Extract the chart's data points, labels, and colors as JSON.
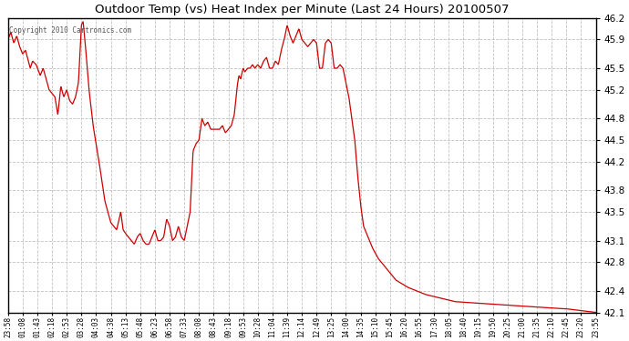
{
  "title": "Outdoor Temp (vs) Heat Index per Minute (Last 24 Hours) 20100507",
  "copyright_text": "Copyright 2010 Cartronics.com",
  "line_color": "#cc0000",
  "background_color": "#ffffff",
  "grid_color": "#c0c0c0",
  "ylim": [
    42.1,
    46.2
  ],
  "yticks": [
    42.1,
    42.4,
    42.8,
    43.1,
    43.5,
    43.8,
    44.2,
    44.5,
    44.8,
    45.2,
    45.5,
    45.9,
    46.2
  ],
  "xtick_labels": [
    "23:58",
    "01:08",
    "01:43",
    "02:18",
    "02:53",
    "03:28",
    "04:03",
    "04:38",
    "05:13",
    "05:48",
    "06:23",
    "06:58",
    "07:33",
    "08:08",
    "08:43",
    "09:18",
    "09:53",
    "10:28",
    "11:04",
    "11:39",
    "12:14",
    "12:49",
    "13:25",
    "14:00",
    "14:35",
    "15:10",
    "15:45",
    "16:20",
    "16:55",
    "17:30",
    "18:05",
    "18:40",
    "19:15",
    "19:50",
    "20:25",
    "21:00",
    "21:35",
    "22:10",
    "22:45",
    "23:20",
    "23:55"
  ],
  "control_points": [
    [
      0.0,
      45.9
    ],
    [
      0.005,
      46.0
    ],
    [
      0.01,
      45.85
    ],
    [
      0.015,
      45.95
    ],
    [
      0.02,
      45.8
    ],
    [
      0.025,
      45.7
    ],
    [
      0.03,
      45.75
    ],
    [
      0.038,
      45.5
    ],
    [
      0.042,
      45.6
    ],
    [
      0.048,
      45.55
    ],
    [
      0.055,
      45.4
    ],
    [
      0.06,
      45.5
    ],
    [
      0.065,
      45.35
    ],
    [
      0.07,
      45.2
    ],
    [
      0.075,
      45.15
    ],
    [
      0.08,
      45.1
    ],
    [
      0.085,
      44.85
    ],
    [
      0.09,
      45.25
    ],
    [
      0.095,
      45.1
    ],
    [
      0.1,
      45.2
    ],
    [
      0.105,
      45.05
    ],
    [
      0.11,
      45.0
    ],
    [
      0.115,
      45.1
    ],
    [
      0.12,
      45.3
    ],
    [
      0.125,
      46.1
    ],
    [
      0.128,
      46.15
    ],
    [
      0.132,
      45.8
    ],
    [
      0.138,
      45.2
    ],
    [
      0.145,
      44.7
    ],
    [
      0.155,
      44.2
    ],
    [
      0.165,
      43.65
    ],
    [
      0.175,
      43.35
    ],
    [
      0.185,
      43.25
    ],
    [
      0.192,
      43.5
    ],
    [
      0.196,
      43.25
    ],
    [
      0.2,
      43.2
    ],
    [
      0.205,
      43.15
    ],
    [
      0.21,
      43.1
    ],
    [
      0.215,
      43.05
    ],
    [
      0.22,
      43.15
    ],
    [
      0.225,
      43.2
    ],
    [
      0.23,
      43.1
    ],
    [
      0.235,
      43.05
    ],
    [
      0.24,
      43.05
    ],
    [
      0.245,
      43.15
    ],
    [
      0.25,
      43.25
    ],
    [
      0.255,
      43.1
    ],
    [
      0.26,
      43.1
    ],
    [
      0.265,
      43.15
    ],
    [
      0.27,
      43.4
    ],
    [
      0.275,
      43.3
    ],
    [
      0.28,
      43.1
    ],
    [
      0.285,
      43.15
    ],
    [
      0.29,
      43.3
    ],
    [
      0.295,
      43.15
    ],
    [
      0.3,
      43.1
    ],
    [
      0.31,
      43.5
    ],
    [
      0.315,
      44.35
    ],
    [
      0.32,
      44.45
    ],
    [
      0.325,
      44.5
    ],
    [
      0.33,
      44.8
    ],
    [
      0.335,
      44.7
    ],
    [
      0.34,
      44.75
    ],
    [
      0.345,
      44.65
    ],
    [
      0.35,
      44.65
    ],
    [
      0.355,
      44.65
    ],
    [
      0.36,
      44.65
    ],
    [
      0.365,
      44.7
    ],
    [
      0.37,
      44.6
    ],
    [
      0.375,
      44.65
    ],
    [
      0.38,
      44.7
    ],
    [
      0.385,
      44.85
    ],
    [
      0.39,
      45.25
    ],
    [
      0.393,
      45.4
    ],
    [
      0.396,
      45.35
    ],
    [
      0.4,
      45.5
    ],
    [
      0.403,
      45.45
    ],
    [
      0.408,
      45.5
    ],
    [
      0.412,
      45.5
    ],
    [
      0.416,
      45.55
    ],
    [
      0.42,
      45.5
    ],
    [
      0.425,
      45.55
    ],
    [
      0.43,
      45.5
    ],
    [
      0.435,
      45.6
    ],
    [
      0.44,
      45.65
    ],
    [
      0.445,
      45.5
    ],
    [
      0.45,
      45.5
    ],
    [
      0.455,
      45.6
    ],
    [
      0.46,
      45.55
    ],
    [
      0.465,
      45.75
    ],
    [
      0.47,
      45.9
    ],
    [
      0.475,
      46.1
    ],
    [
      0.48,
      45.95
    ],
    [
      0.485,
      45.85
    ],
    [
      0.49,
      45.95
    ],
    [
      0.495,
      46.05
    ],
    [
      0.5,
      45.9
    ],
    [
      0.505,
      45.85
    ],
    [
      0.51,
      45.8
    ],
    [
      0.515,
      45.85
    ],
    [
      0.52,
      45.9
    ],
    [
      0.525,
      45.85
    ],
    [
      0.53,
      45.5
    ],
    [
      0.535,
      45.5
    ],
    [
      0.54,
      45.85
    ],
    [
      0.545,
      45.9
    ],
    [
      0.55,
      45.85
    ],
    [
      0.555,
      45.5
    ],
    [
      0.56,
      45.5
    ],
    [
      0.565,
      45.55
    ],
    [
      0.57,
      45.5
    ],
    [
      0.575,
      45.3
    ],
    [
      0.58,
      45.1
    ],
    [
      0.585,
      44.8
    ],
    [
      0.59,
      44.5
    ],
    [
      0.595,
      44.0
    ],
    [
      0.6,
      43.6
    ],
    [
      0.605,
      43.3
    ],
    [
      0.61,
      43.2
    ],
    [
      0.615,
      43.1
    ],
    [
      0.62,
      43.0
    ],
    [
      0.63,
      42.85
    ],
    [
      0.645,
      42.7
    ],
    [
      0.66,
      42.55
    ],
    [
      0.68,
      42.45
    ],
    [
      0.71,
      42.35
    ],
    [
      0.76,
      42.25
    ],
    [
      0.85,
      42.2
    ],
    [
      0.95,
      42.15
    ],
    [
      1.0,
      42.1
    ]
  ]
}
